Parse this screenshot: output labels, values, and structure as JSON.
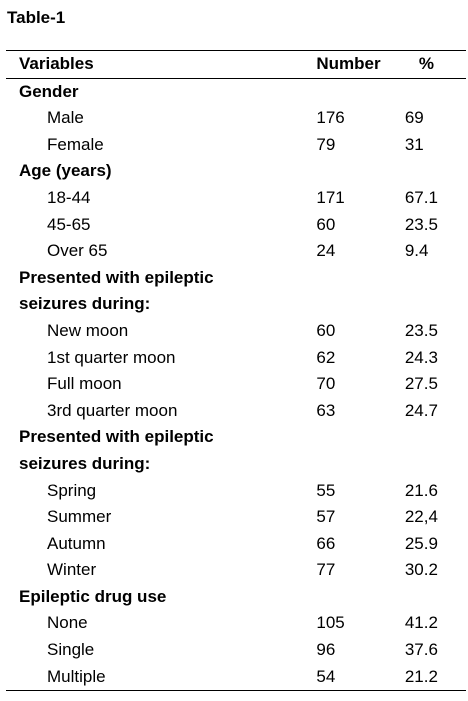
{
  "title": "Table-1",
  "columns": {
    "variable": "Variables",
    "number": "Number",
    "percent": "%"
  },
  "rows": [
    {
      "kind": "section",
      "label": "Gender"
    },
    {
      "kind": "item",
      "label": "Male",
      "number": "176",
      "percent": "69"
    },
    {
      "kind": "item",
      "label": "Female",
      "number": "79",
      "percent": "31"
    },
    {
      "kind": "section",
      "label": "Age (years)"
    },
    {
      "kind": "item",
      "label": "18-44",
      "number": "171",
      "percent": "67.1"
    },
    {
      "kind": "item",
      "label": "45-65",
      "number": "60",
      "percent": "23.5"
    },
    {
      "kind": "item",
      "label": "Over 65",
      "number": "24",
      "percent": "9.4"
    },
    {
      "kind": "section",
      "label": "Presented with epileptic"
    },
    {
      "kind": "section",
      "label": "seizures during:"
    },
    {
      "kind": "item",
      "label": "New moon",
      "number": "60",
      "percent": "23.5"
    },
    {
      "kind": "item",
      "label": "1st quarter moon",
      "number": "62",
      "percent": "24.3"
    },
    {
      "kind": "item",
      "label": "Full moon",
      "number": "70",
      "percent": "27.5"
    },
    {
      "kind": "item",
      "label": "3rd quarter moon",
      "number": "63",
      "percent": "24.7"
    },
    {
      "kind": "section",
      "label": "Presented with epileptic"
    },
    {
      "kind": "section",
      "label": "seizures during:"
    },
    {
      "kind": "item",
      "label": "Spring",
      "number": "55",
      "percent": "21.6"
    },
    {
      "kind": "item",
      "label": "Summer",
      "number": "57",
      "percent": "22,4"
    },
    {
      "kind": "item",
      "label": "Autumn",
      "number": "66",
      "percent": "25.9"
    },
    {
      "kind": "item",
      "label": "Winter",
      "number": "77",
      "percent": "30.2"
    },
    {
      "kind": "section",
      "label": "Epileptic drug use"
    },
    {
      "kind": "item",
      "label": "None",
      "number": "105",
      "percent": "41.2"
    },
    {
      "kind": "item",
      "label": "Single",
      "number": "96",
      "percent": "37.6"
    },
    {
      "kind": "item",
      "label": "Multiple",
      "number": "54",
      "percent": "21.2"
    }
  ]
}
